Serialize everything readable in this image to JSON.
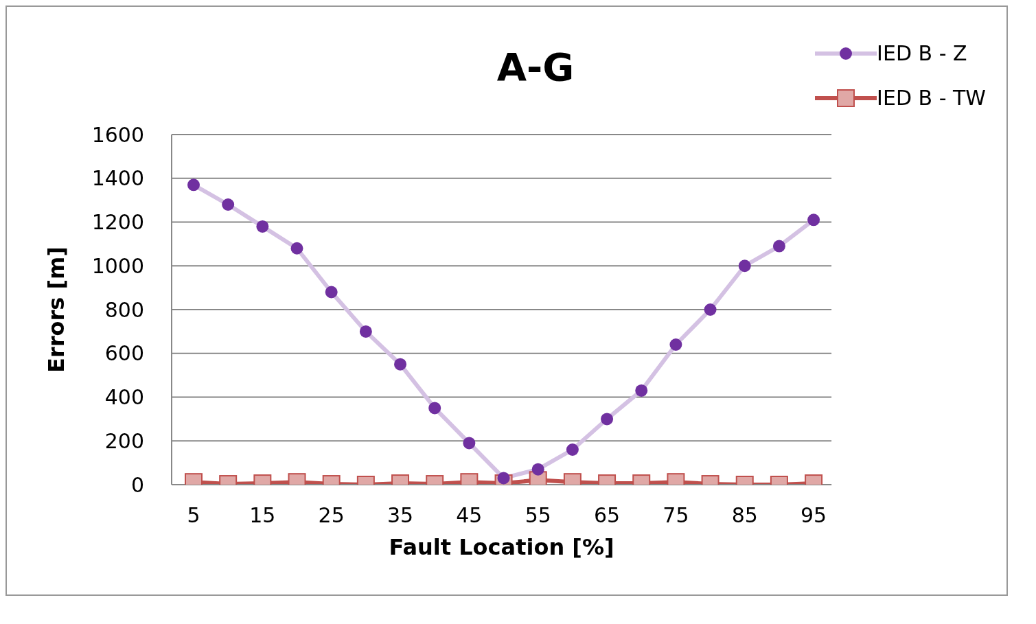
{
  "chart_data": {
    "type": "line",
    "title": "A-G",
    "xlabel": "Fault Location [%]",
    "ylabel": "Errors [m]",
    "categories": [
      "5",
      null,
      "15",
      null,
      "25",
      null,
      "35",
      null,
      "45",
      null,
      "55",
      null,
      "65",
      null,
      "75",
      null,
      "85",
      null,
      "95"
    ],
    "series": [
      {
        "name": "IED B - Z",
        "color": "#7030a0",
        "marker": "circle",
        "values": [
          1370,
          1280,
          1180,
          1080,
          880,
          700,
          550,
          350,
          190,
          30,
          70,
          160,
          300,
          430,
          640,
          800,
          1000,
          1090,
          1210
        ]
      },
      {
        "name": "IED B - TW",
        "color": "#c0504d",
        "marker": "square",
        "values": [
          12,
          3,
          6,
          12,
          3,
          0,
          6,
          3,
          12,
          6,
          21,
          12,
          6,
          6,
          12,
          3,
          0,
          0,
          6
        ]
      }
    ],
    "ylim": [
      0,
      1600
    ],
    "yticks": [
      0,
      200,
      400,
      600,
      800,
      1000,
      1200,
      1400,
      1600
    ],
    "grid": "y",
    "legend": "top right"
  }
}
